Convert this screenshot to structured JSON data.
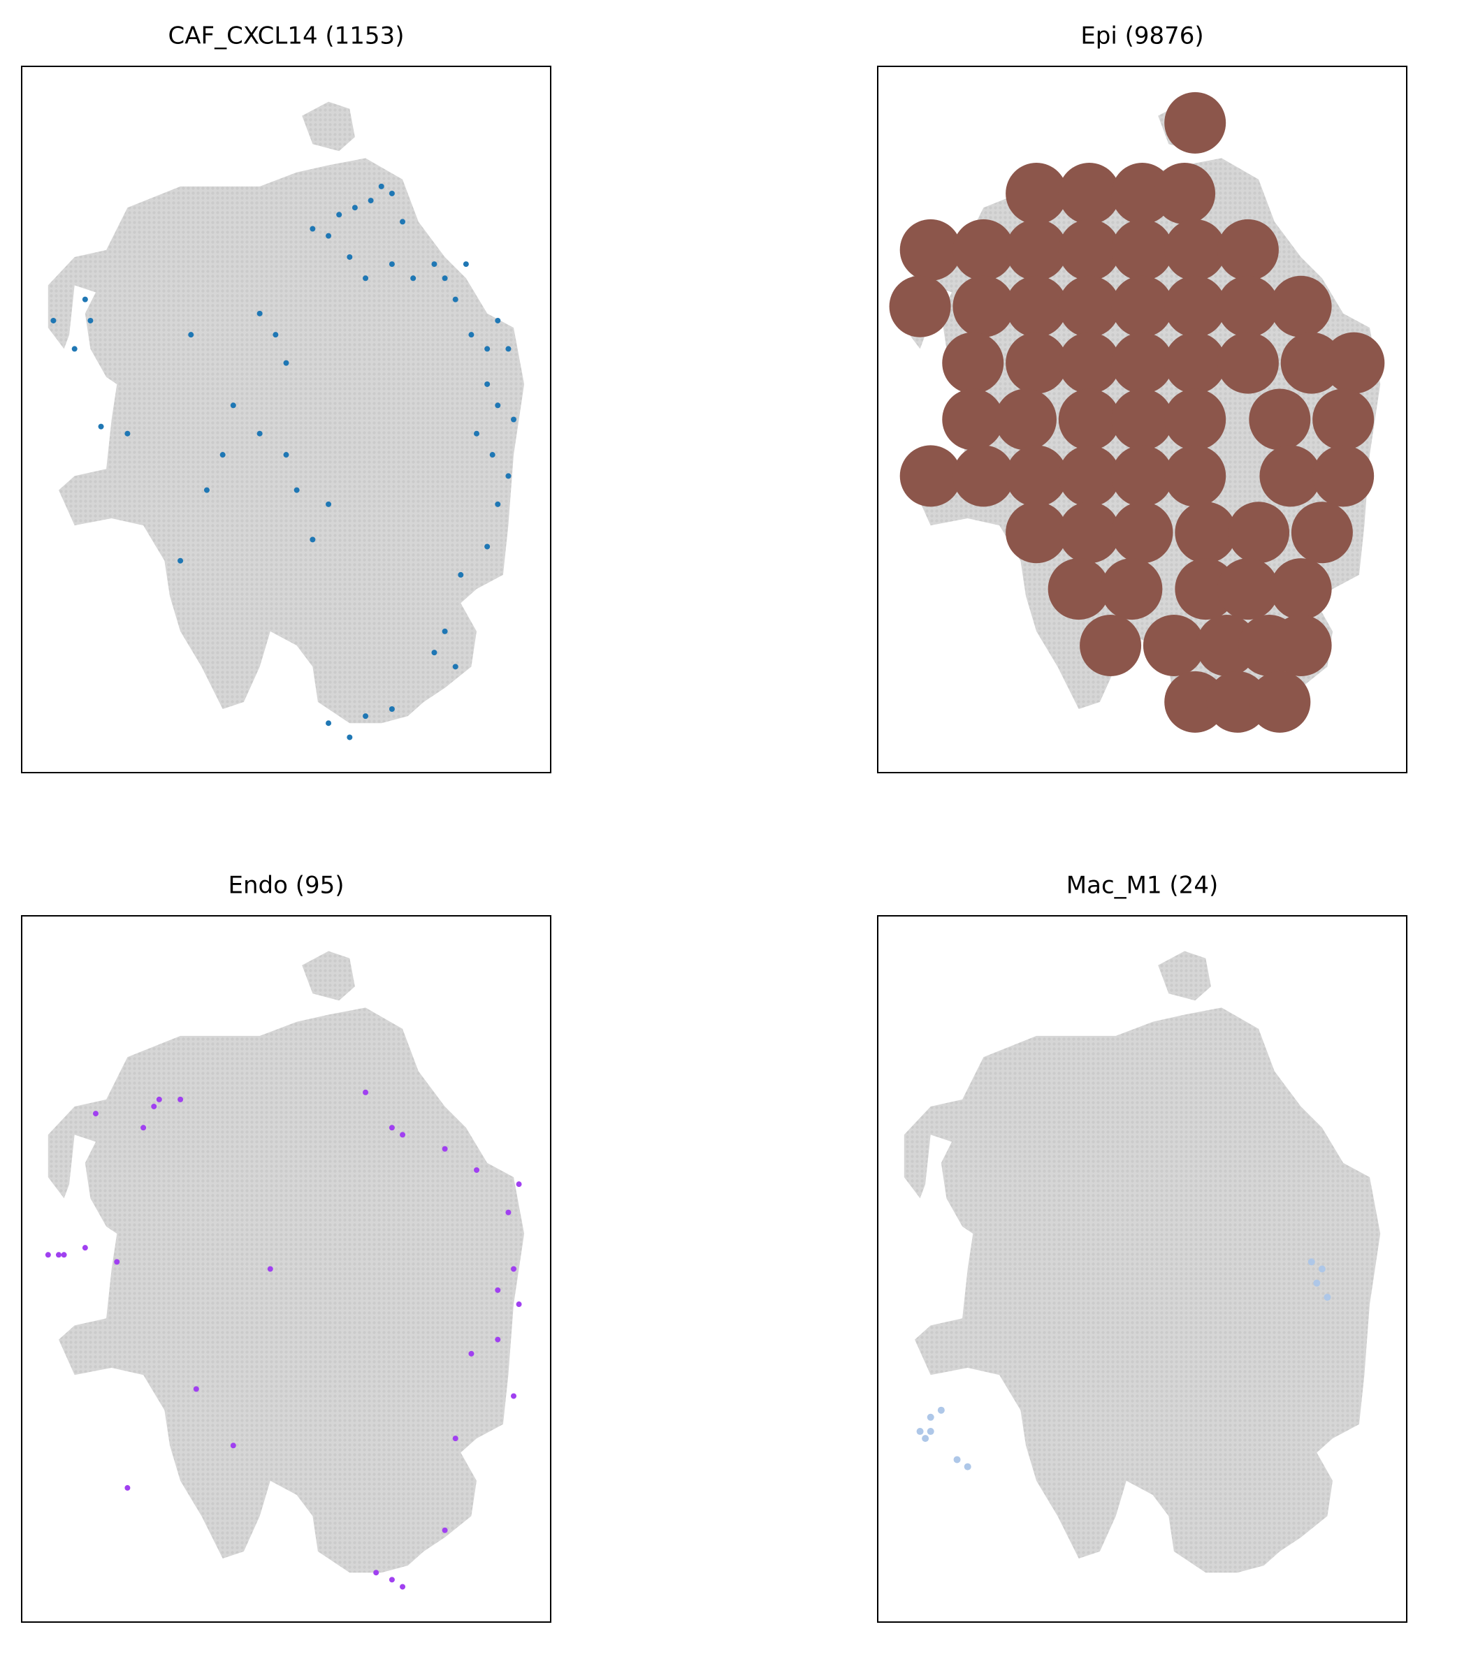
{
  "chart_data": [
    {
      "type": "scatter",
      "title": "CAF_CXCL14 (1153)",
      "xlim": [
        0,
        100
      ],
      "ylim": [
        0,
        100
      ],
      "series": [
        {
          "color": "#1f77b4",
          "marker_size": 4,
          "x": [
            55,
            58,
            60,
            63,
            66,
            68,
            70,
            72,
            62,
            65,
            70,
            74,
            78,
            80,
            84,
            82,
            85,
            88,
            90,
            92,
            88,
            90,
            93,
            86,
            89,
            92,
            90,
            88,
            83,
            80,
            82,
            12,
            13,
            6,
            10,
            45,
            48,
            50,
            32,
            15,
            20,
            40,
            45,
            38,
            50,
            52,
            58,
            55,
            30,
            35,
            78,
            65,
            70,
            58,
            62
          ],
          "y": [
            77,
            76,
            79,
            80,
            81,
            83,
            82,
            78,
            73,
            70,
            72,
            70,
            72,
            70,
            72,
            67,
            62,
            60,
            64,
            60,
            55,
            52,
            50,
            48,
            45,
            42,
            38,
            32,
            28,
            20,
            15,
            67,
            64,
            64,
            60,
            65,
            62,
            58,
            62,
            49,
            48,
            52,
            48,
            45,
            45,
            40,
            38,
            33,
            30,
            40,
            17,
            8,
            9,
            7,
            5
          ]
        }
      ]
    },
    {
      "type": "scatter",
      "title": "Epi (9876)",
      "xlim": [
        0,
        100
      ],
      "ylim": [
        0,
        100
      ],
      "series": [
        {
          "color": "#8c564b",
          "marker_size": 44,
          "x": [
            60,
            30,
            40,
            50,
            58,
            10,
            20,
            30,
            40,
            50,
            60,
            70,
            8,
            20,
            30,
            40,
            50,
            60,
            70,
            80,
            18,
            30,
            40,
            50,
            60,
            70,
            82,
            90,
            18,
            28,
            40,
            50,
            60,
            76,
            88,
            10,
            20,
            30,
            40,
            50,
            60,
            78,
            88,
            30,
            40,
            50,
            62,
            72,
            84,
            38,
            48,
            62,
            70,
            80,
            44,
            56,
            66,
            74,
            80,
            60,
            68,
            76
          ],
          "y": [
            92,
            82,
            82,
            82,
            82,
            74,
            74,
            74,
            74,
            74,
            74,
            74,
            66,
            66,
            66,
            66,
            66,
            66,
            66,
            66,
            58,
            58,
            58,
            58,
            58,
            58,
            58,
            58,
            50,
            50,
            50,
            50,
            50,
            50,
            50,
            42,
            42,
            42,
            42,
            42,
            42,
            42,
            42,
            34,
            34,
            34,
            34,
            34,
            34,
            26,
            26,
            26,
            26,
            26,
            18,
            18,
            18,
            18,
            18,
            10,
            10,
            10
          ]
        }
      ]
    },
    {
      "type": "scatter",
      "title": "Endo (95)",
      "xlim": [
        0,
        100
      ],
      "ylim": [
        0,
        100
      ],
      "series": [
        {
          "color": "#a040f0",
          "marker_size": 4,
          "x": [
            26,
            30,
            25,
            14,
            8,
            12,
            7,
            5,
            18,
            23,
            65,
            70,
            72,
            80,
            86,
            94,
            92,
            93,
            90,
            94,
            90,
            85,
            93,
            82,
            80,
            67,
            70,
            72,
            40,
            33,
            20,
            47
          ],
          "y": [
            74,
            74,
            73,
            72,
            52,
            53,
            52,
            52,
            51,
            70,
            75,
            70,
            69,
            67,
            64,
            62,
            58,
            50,
            47,
            45,
            40,
            38,
            32,
            26,
            13,
            7,
            6,
            5,
            25,
            33,
            19,
            50
          ]
        }
      ]
    },
    {
      "type": "scatter",
      "title": "Mac_M1 (24)",
      "xlim": [
        0,
        100
      ],
      "ylim": [
        0,
        100
      ],
      "series": [
        {
          "color": "#aec7e8",
          "marker_size": 5,
          "x": [
            10,
            9,
            8,
            10,
            12,
            15,
            17,
            82,
            84,
            83,
            85
          ],
          "y": [
            27,
            26,
            27,
            29,
            30,
            23,
            22,
            51,
            50,
            48,
            46
          ]
        }
      ]
    }
  ]
}
